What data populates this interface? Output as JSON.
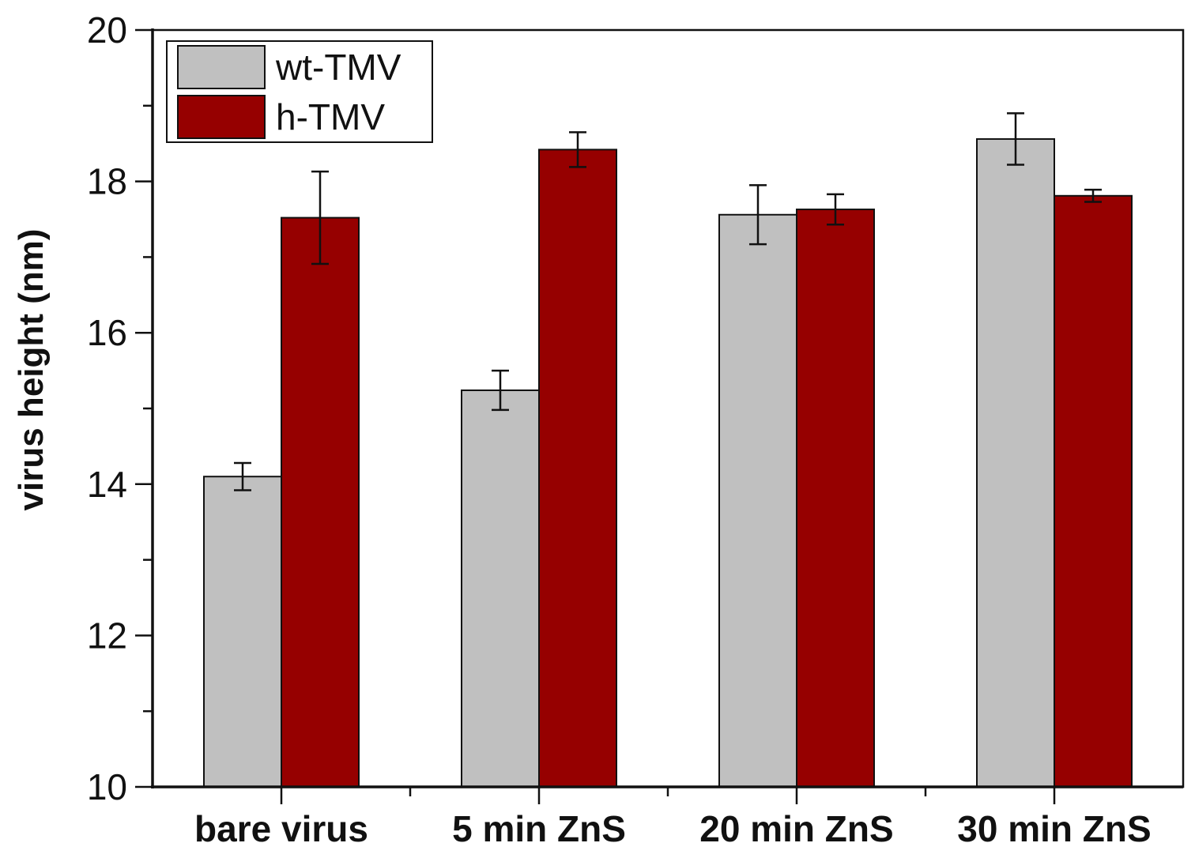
{
  "chart_data": {
    "type": "bar",
    "title": "",
    "xlabel": "",
    "ylabel": "virus height (nm)",
    "ylim": [
      10,
      20
    ],
    "yticks": [
      10,
      12,
      14,
      16,
      18,
      20
    ],
    "categories": [
      "bare virus",
      "5 min ZnS",
      "20 min ZnS",
      "30 min ZnS"
    ],
    "series": [
      {
        "name": "wt-TMV",
        "color": "#c0c0c0",
        "values": [
          14.1,
          15.24,
          17.56,
          18.56
        ],
        "errors": [
          0.18,
          0.26,
          0.39,
          0.34
        ]
      },
      {
        "name": "h-TMV",
        "color": "#960000",
        "values": [
          17.52,
          18.42,
          17.63,
          17.81
        ],
        "errors": [
          0.61,
          0.23,
          0.2,
          0.08
        ]
      }
    ],
    "legend": {
      "position": "top-left"
    },
    "grid": false
  }
}
